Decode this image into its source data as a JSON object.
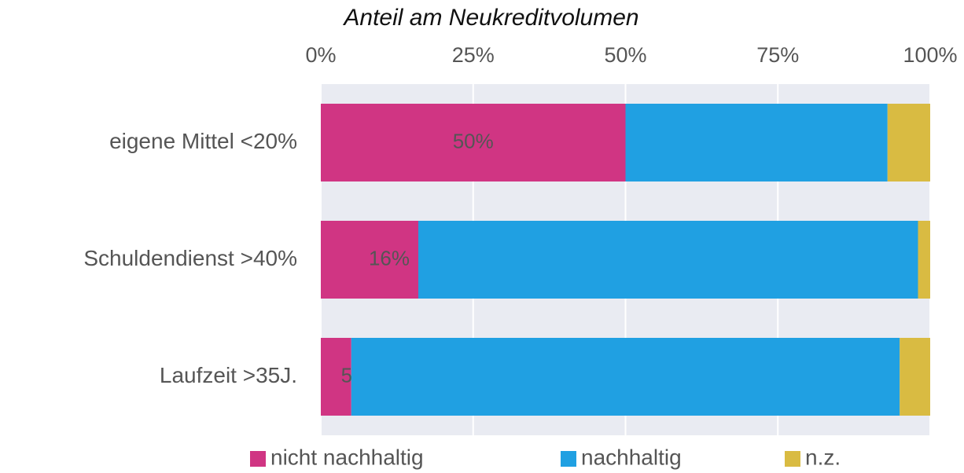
{
  "chart_data": {
    "type": "stacked_barh",
    "title": "Anteil am Neukreditvolumen",
    "categories": [
      "eigene Mittel <20%",
      "Schuldendienst >40%",
      "Laufzeit >35J."
    ],
    "series": [
      {
        "name": "nicht nachhaltig",
        "color": "#d03583",
        "values": [
          50,
          16,
          5
        ],
        "value_labels": [
          "50%",
          "16%",
          "5%"
        ]
      },
      {
        "name": "nachhaltig",
        "color": "#20a0e2",
        "values": [
          43,
          82,
          90
        ]
      },
      {
        "name": "n.z.",
        "color": "#d9bb42",
        "values": [
          7,
          2,
          5
        ]
      }
    ],
    "xlim": [
      0,
      100
    ],
    "xticks": [
      {
        "value": 0,
        "label": "0%"
      },
      {
        "value": 25,
        "label": "25%"
      },
      {
        "value": 50,
        "label": "50%"
      },
      {
        "value": 75,
        "label": "75%"
      },
      {
        "value": 100,
        "label": "100%"
      }
    ],
    "grid": true
  }
}
